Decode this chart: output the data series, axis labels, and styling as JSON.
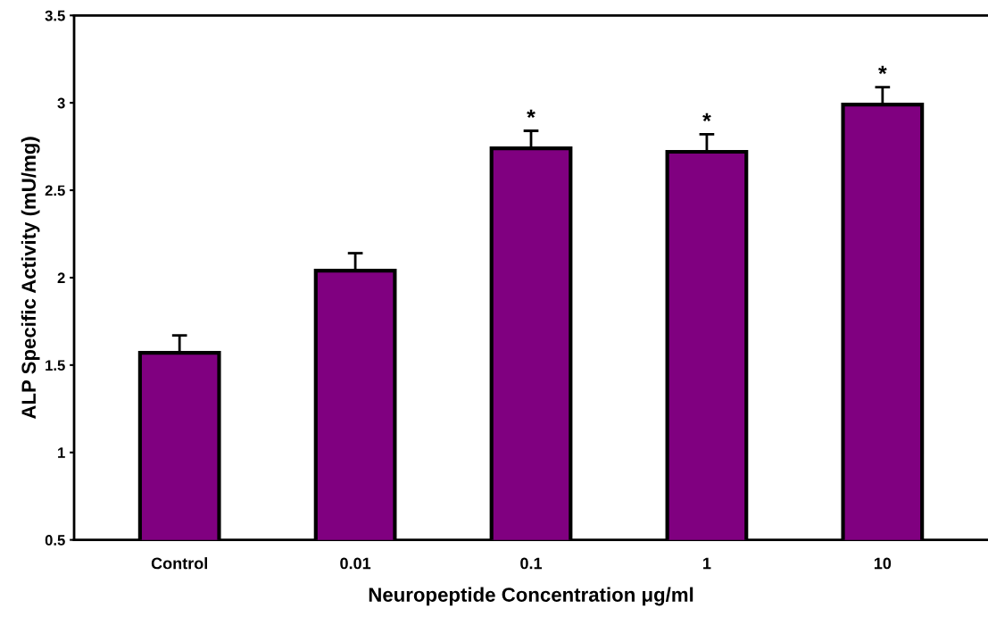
{
  "chart_data": {
    "type": "bar",
    "xlabel": "Neuropeptide Concentration μg/ml",
    "ylabel": "ALP Specific Activity (mU/mg)",
    "categories": [
      "Control",
      "0.01",
      "0.1",
      "1",
      "10"
    ],
    "values": [
      1.57,
      2.04,
      2.74,
      2.72,
      2.99
    ],
    "errors": [
      0.1,
      0.1,
      0.1,
      0.1,
      0.1
    ],
    "color": "#800080",
    "ylim": [
      0.5,
      3.5
    ],
    "yticks": [
      0.5,
      1,
      1.5,
      2,
      2.5,
      3,
      3.5
    ],
    "grid": false,
    "legend": false,
    "annotations": [
      {
        "text": "*",
        "x": "0.1",
        "y": 2.84
      },
      {
        "text": "*",
        "x": "1",
        "y": 2.82
      },
      {
        "text": "*",
        "x": "10",
        "y": 3.09
      }
    ]
  }
}
